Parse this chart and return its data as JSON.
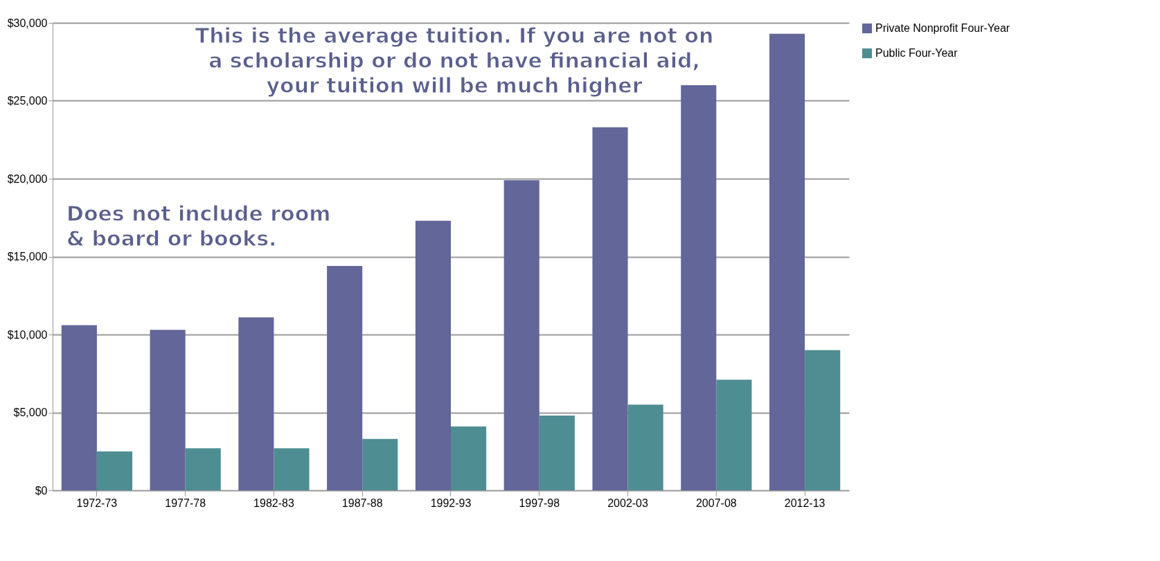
{
  "chart_data": {
    "type": "bar",
    "categories": [
      "1972-73",
      "1977-78",
      "1982-83",
      "1987-88",
      "1992-93",
      "1997-98",
      "2002-03",
      "2007-08",
      "2012-13"
    ],
    "series": [
      {
        "name": "Private Nonprofit Four-Year",
        "color": "#636699",
        "values": [
          10600,
          10300,
          11100,
          14400,
          17300,
          19900,
          23300,
          26000,
          29300
        ]
      },
      {
        "name": "Public Four-Year",
        "color": "#4e8d92",
        "values": [
          2500,
          2700,
          2700,
          3300,
          4100,
          4800,
          5500,
          7100,
          9000
        ]
      }
    ],
    "ylim": [
      0,
      30000
    ],
    "yticks": [
      {
        "value": 0,
        "label": "$0"
      },
      {
        "value": 5000,
        "label": "$5,000"
      },
      {
        "value": 10000,
        "label": "$10,000"
      },
      {
        "value": 15000,
        "label": "$15,000"
      },
      {
        "value": 20000,
        "label": "$20,000"
      },
      {
        "value": 25000,
        "label": "$25,000"
      },
      {
        "value": 30000,
        "label": "$30,000"
      }
    ],
    "grid": "y",
    "legend": "right",
    "annotations": [
      "This is the average tuition. If you are not on\na scholarship or do not have financial aid,\nyour tuition will be much higher",
      "Does not include room\n& board or books."
    ]
  }
}
